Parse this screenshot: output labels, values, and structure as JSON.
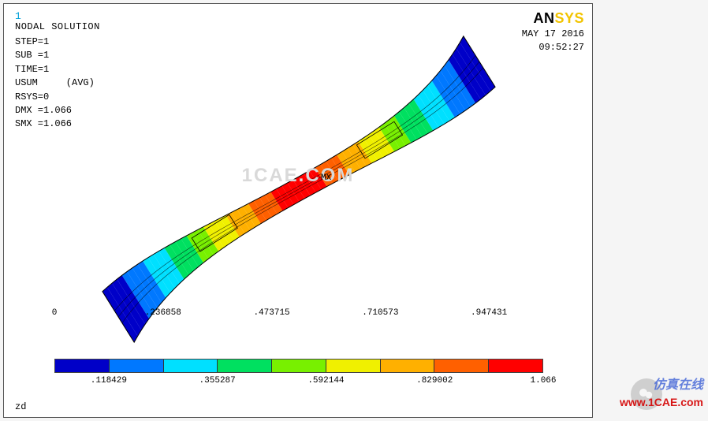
{
  "frame": {
    "background": "#ffffff",
    "border_color": "#555555"
  },
  "header": {
    "step_index": "1",
    "title": "NODAL SOLUTION",
    "meta_lines": [
      "STEP=1",
      "SUB =1",
      "TIME=1",
      "USUM     (AVG)",
      "RSYS=0",
      "DMX =1.066",
      "SMX =1.066"
    ],
    "logo_an": "AN",
    "logo_sys": "SYS",
    "date": "MAY 17 2016",
    "time": "09:52:27"
  },
  "model": {
    "mx_label": "MX",
    "watermark_mid": "1CAE.COM",
    "contour": {
      "type": "fea-contour",
      "description": "elongated curved crossmember beam with colored displacement bands",
      "result": "USUM",
      "rsys": 0,
      "dmx": 1.066,
      "smx": 1.066,
      "min_value": 0,
      "max_value": 1.066,
      "band_colors": [
        "#0000c8",
        "#0078ff",
        "#00e0ff",
        "#00e060",
        "#78f000",
        "#f0f000",
        "#ffb000",
        "#ff6000",
        "#ff0000"
      ],
      "mx_marker_position": "center",
      "approx_rotation_deg": -32
    }
  },
  "legend": {
    "colors": [
      "#0000c8",
      "#0078ff",
      "#00e0ff",
      "#00e060",
      "#78f000",
      "#f0f000",
      "#ffb000",
      "#ff6000",
      "#ff0000"
    ],
    "ticks_upper": [
      "0",
      ".236858",
      ".473715",
      ".710573",
      ".947431"
    ],
    "ticks_lower": [
      ".118429",
      ".355287",
      ".592144",
      ".829002",
      "1.066"
    ],
    "n_segments": 9
  },
  "footer": {
    "zd": "zd"
  },
  "watermarks": {
    "cn_text": "仿真在线",
    "url": "www.1CAE.com"
  }
}
